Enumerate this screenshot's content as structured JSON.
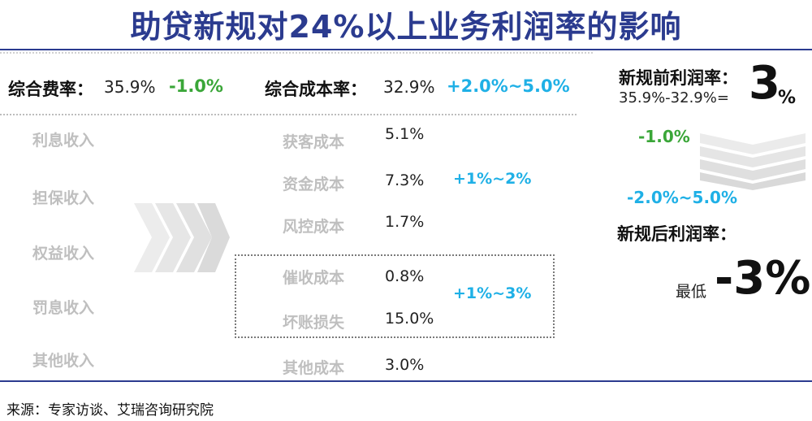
{
  "title": "助贷新规对24%以上业务利润率的影响",
  "left": {
    "rate_label": "综合费率：",
    "rate_value": "35.9%",
    "rate_change": "-1.0%",
    "income_items": [
      "利息收入",
      "担保收入",
      "权益收入",
      "罚息收入",
      "其他收入"
    ]
  },
  "middle": {
    "cost_label": "综合成本率：",
    "cost_value": "32.9%",
    "cost_change": "+2.0%~5.0%",
    "cost_items": [
      {
        "name": "获客成本",
        "value": "5.1%"
      },
      {
        "name": "资金成本",
        "value": "7.3%"
      },
      {
        "name": "风控成本",
        "value": "1.7%"
      },
      {
        "name": "催收成本",
        "value": "0.8%"
      },
      {
        "name": "坏账损失",
        "value": "15.0%"
      },
      {
        "name": "其他成本",
        "value": "3.0%"
      }
    ],
    "fund_change": "+1%~2%",
    "collection_change": "+1%~3%"
  },
  "right": {
    "before_label": "新规前利润率：",
    "before_formula": "35.9%-32.9%=",
    "before_value": "3",
    "before_unit": "%",
    "change_1": "-1.0%",
    "change_2": "-2.0%~5.0%",
    "after_label": "新规后利润率：",
    "after_prefix": "最低",
    "after_value": "-3%"
  },
  "source": "来源：专家访谈、艾瑞咨询研究院",
  "colors": {
    "title": "#2b3b8f",
    "green": "#3aa638",
    "cyan": "#1fb0e6",
    "grey": "#bfbfbf"
  }
}
